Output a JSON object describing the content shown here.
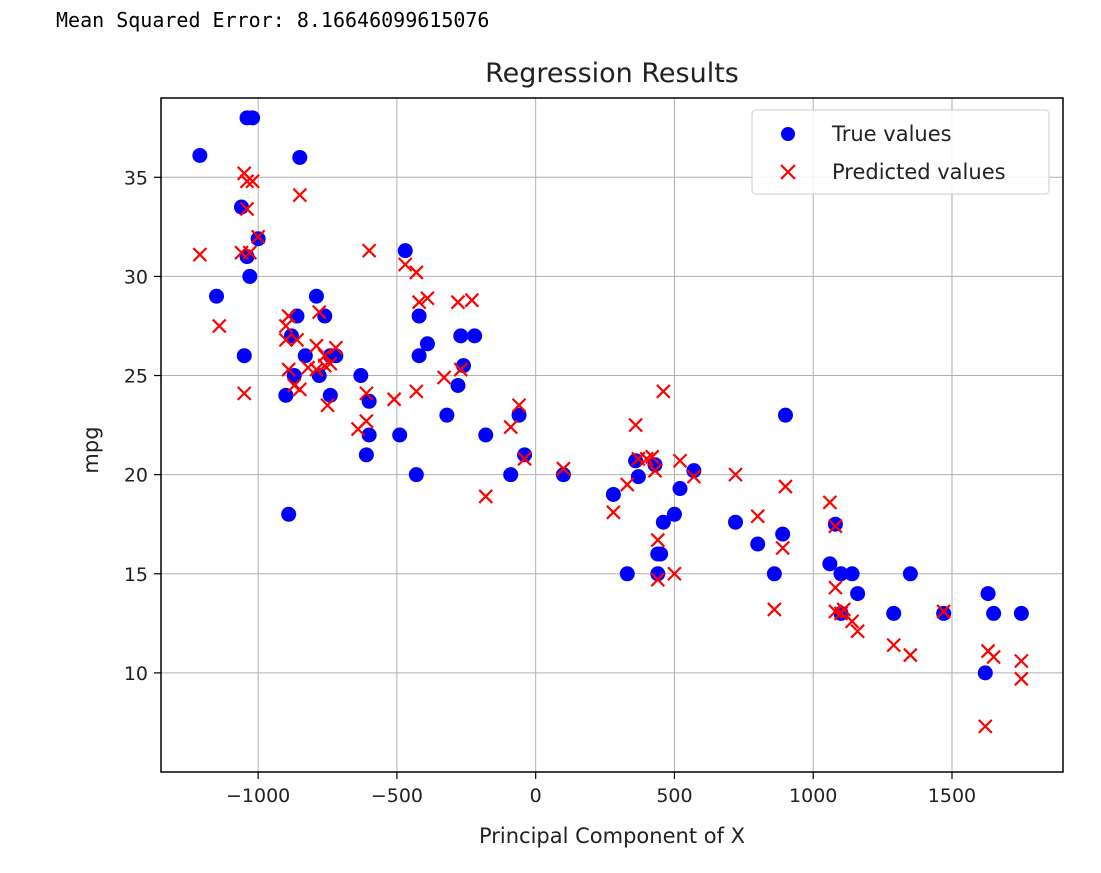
{
  "header": {
    "mse_text": "Mean Squared Error: 8.16646099615076"
  },
  "colors": {
    "true_values": "#0000ff",
    "predicted_values": "#ff0000",
    "grid": "#b0b0b0",
    "axis": "#000000"
  },
  "chart_data": {
    "type": "scatter",
    "title": "Regression Results",
    "xlabel": "Principal Component of X",
    "ylabel": "mpg",
    "xlim": [
      -1350,
      1900
    ],
    "ylim": [
      5,
      39
    ],
    "xticks": [
      -1000,
      -500,
      0,
      500,
      1000,
      1500
    ],
    "xtick_labels": [
      "−1000",
      "−500",
      "0",
      "500",
      "1000",
      "1500"
    ],
    "yticks": [
      10,
      15,
      20,
      25,
      30,
      35
    ],
    "ytick_labels": [
      "10",
      "15",
      "20",
      "25",
      "30",
      "35"
    ],
    "grid": true,
    "legend_position": "top-right",
    "series": [
      {
        "name": "True values",
        "marker": "circle",
        "color": "#0000ff",
        "points": [
          [
            -1210,
            36.1
          ],
          [
            -1040,
            38
          ],
          [
            -1020,
            38
          ],
          [
            -850,
            36
          ],
          [
            -1060,
            33.5
          ],
          [
            -1040,
            31
          ],
          [
            -1000,
            31.9
          ],
          [
            -1030,
            30
          ],
          [
            -1150,
            29
          ],
          [
            -1050,
            26
          ],
          [
            -900,
            24
          ],
          [
            -890,
            18
          ],
          [
            -880,
            27
          ],
          [
            -860,
            28
          ],
          [
            -830,
            26
          ],
          [
            -870,
            25
          ],
          [
            -790,
            29
          ],
          [
            -760,
            28
          ],
          [
            -740,
            26
          ],
          [
            -720,
            26
          ],
          [
            -780,
            25
          ],
          [
            -740,
            24
          ],
          [
            -630,
            25
          ],
          [
            -600,
            23.7
          ],
          [
            -600,
            22
          ],
          [
            -610,
            21
          ],
          [
            -490,
            22
          ],
          [
            -470,
            31.3
          ],
          [
            -420,
            28
          ],
          [
            -420,
            26
          ],
          [
            -390,
            26.6
          ],
          [
            -430,
            20
          ],
          [
            -320,
            23
          ],
          [
            -280,
            24.5
          ],
          [
            -270,
            27
          ],
          [
            -260,
            25.5
          ],
          [
            -220,
            27
          ],
          [
            -180,
            22
          ],
          [
            -90,
            20
          ],
          [
            -60,
            23
          ],
          [
            -40,
            21
          ],
          [
            100,
            20
          ],
          [
            280,
            19
          ],
          [
            330,
            15
          ],
          [
            360,
            20.7
          ],
          [
            370,
            19.9
          ],
          [
            430,
            20.5
          ],
          [
            440,
            16
          ],
          [
            440,
            15
          ],
          [
            450,
            16
          ],
          [
            460,
            17.6
          ],
          [
            500,
            18
          ],
          [
            520,
            19.3
          ],
          [
            570,
            20.2
          ],
          [
            720,
            17.6
          ],
          [
            800,
            16.5
          ],
          [
            860,
            15
          ],
          [
            890,
            17
          ],
          [
            900,
            23
          ],
          [
            1060,
            15.5
          ],
          [
            1080,
            17.5
          ],
          [
            1100,
            15
          ],
          [
            1140,
            15
          ],
          [
            1160,
            14
          ],
          [
            1100,
            13
          ],
          [
            1290,
            13
          ],
          [
            1350,
            15
          ],
          [
            1470,
            13
          ],
          [
            1620,
            10
          ],
          [
            1630,
            14
          ],
          [
            1650,
            13
          ],
          [
            1750,
            13
          ]
        ]
      },
      {
        "name": "Predicted values",
        "marker": "x",
        "color": "#ff0000",
        "points": [
          [
            -1210,
            31.1
          ],
          [
            -1050,
            35.2
          ],
          [
            -1040,
            34.8
          ],
          [
            -1020,
            34.8
          ],
          [
            -850,
            34.1
          ],
          [
            -1040,
            33.4
          ],
          [
            -1060,
            31.2
          ],
          [
            -1030,
            31.2
          ],
          [
            -1000,
            32
          ],
          [
            -1140,
            27.5
          ],
          [
            -1050,
            24.1
          ],
          [
            -600,
            31.3
          ],
          [
            -900,
            27.5
          ],
          [
            -890,
            28
          ],
          [
            -860,
            26.8
          ],
          [
            -900,
            26.8
          ],
          [
            -780,
            28.2
          ],
          [
            -790,
            26.5
          ],
          [
            -760,
            26
          ],
          [
            -720,
            26.4
          ],
          [
            -820,
            25.4
          ],
          [
            -790,
            25.3
          ],
          [
            -760,
            25.5
          ],
          [
            -740,
            25.6
          ],
          [
            -890,
            25.3
          ],
          [
            -870,
            24.5
          ],
          [
            -850,
            24.3
          ],
          [
            -750,
            23.5
          ],
          [
            -640,
            22.3
          ],
          [
            -610,
            22.7
          ],
          [
            -610,
            24.1
          ],
          [
            -510,
            23.8
          ],
          [
            -470,
            30.6
          ],
          [
            -430,
            30.2
          ],
          [
            -420,
            28.7
          ],
          [
            -390,
            28.9
          ],
          [
            -280,
            28.7
          ],
          [
            -230,
            28.8
          ],
          [
            -430,
            24.2
          ],
          [
            -330,
            24.9
          ],
          [
            -270,
            25.3
          ],
          [
            -180,
            18.9
          ],
          [
            -90,
            22.4
          ],
          [
            -60,
            23.5
          ],
          [
            -40,
            20.8
          ],
          [
            100,
            20.3
          ],
          [
            280,
            18.1
          ],
          [
            330,
            19.5
          ],
          [
            360,
            22.5
          ],
          [
            370,
            20.8
          ],
          [
            400,
            20.8
          ],
          [
            420,
            20.9
          ],
          [
            430,
            20.2
          ],
          [
            440,
            16.7
          ],
          [
            440,
            14.7
          ],
          [
            460,
            24.2
          ],
          [
            500,
            15
          ],
          [
            520,
            20.7
          ],
          [
            570,
            19.9
          ],
          [
            720,
            20
          ],
          [
            800,
            17.9
          ],
          [
            860,
            13.2
          ],
          [
            890,
            16.3
          ],
          [
            900,
            19.4
          ],
          [
            1060,
            18.6
          ],
          [
            1080,
            17.4
          ],
          [
            1080,
            14.3
          ],
          [
            1080,
            13.1
          ],
          [
            1100,
            13
          ],
          [
            1110,
            13.2
          ],
          [
            1140,
            12.6
          ],
          [
            1160,
            12.1
          ],
          [
            1290,
            11.4
          ],
          [
            1350,
            10.9
          ],
          [
            1470,
            13.1
          ],
          [
            1620,
            7.3
          ],
          [
            1630,
            11.1
          ],
          [
            1650,
            10.8
          ],
          [
            1750,
            10.6
          ],
          [
            1750,
            9.7
          ]
        ]
      }
    ]
  }
}
